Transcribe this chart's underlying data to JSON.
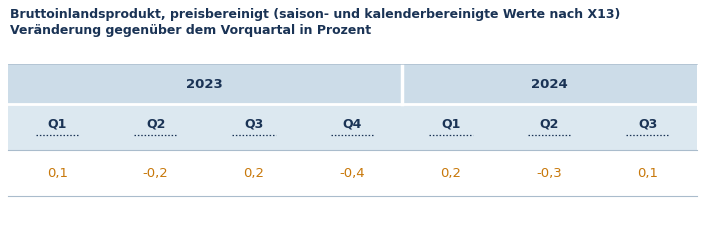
{
  "title_line1": "Bruttoinlandsprodukt, preisbereinigt (saison- und kalenderbereinigte Werte nach X13)",
  "title_line2": "Veränderung gegenüber dem Vorquartal in Prozent",
  "quarters": [
    "Q1",
    "Q2",
    "Q3",
    "Q4",
    "Q1",
    "Q2",
    "Q3"
  ],
  "values": [
    "0,1",
    "-0,2",
    "0,2",
    "-0,4",
    "0,2",
    "-0,3",
    "0,1"
  ],
  "bg_color": "#ffffff",
  "header_bg": "#ccdce8",
  "quarter_bg": "#dce8f0",
  "title_color": "#1a3355",
  "header_text_color": "#1a3355",
  "quarter_text_color": "#1a3355",
  "value_color": "#c8780a",
  "sep_color": "#ffffff",
  "line_color": "#aabccc",
  "title_fontsize": 9.0,
  "header_fontsize": 9.5,
  "quarter_fontsize": 9.0,
  "value_fontsize": 9.5,
  "n_cols": 7,
  "year_2023_cols": 4,
  "year_2024_cols": 3
}
